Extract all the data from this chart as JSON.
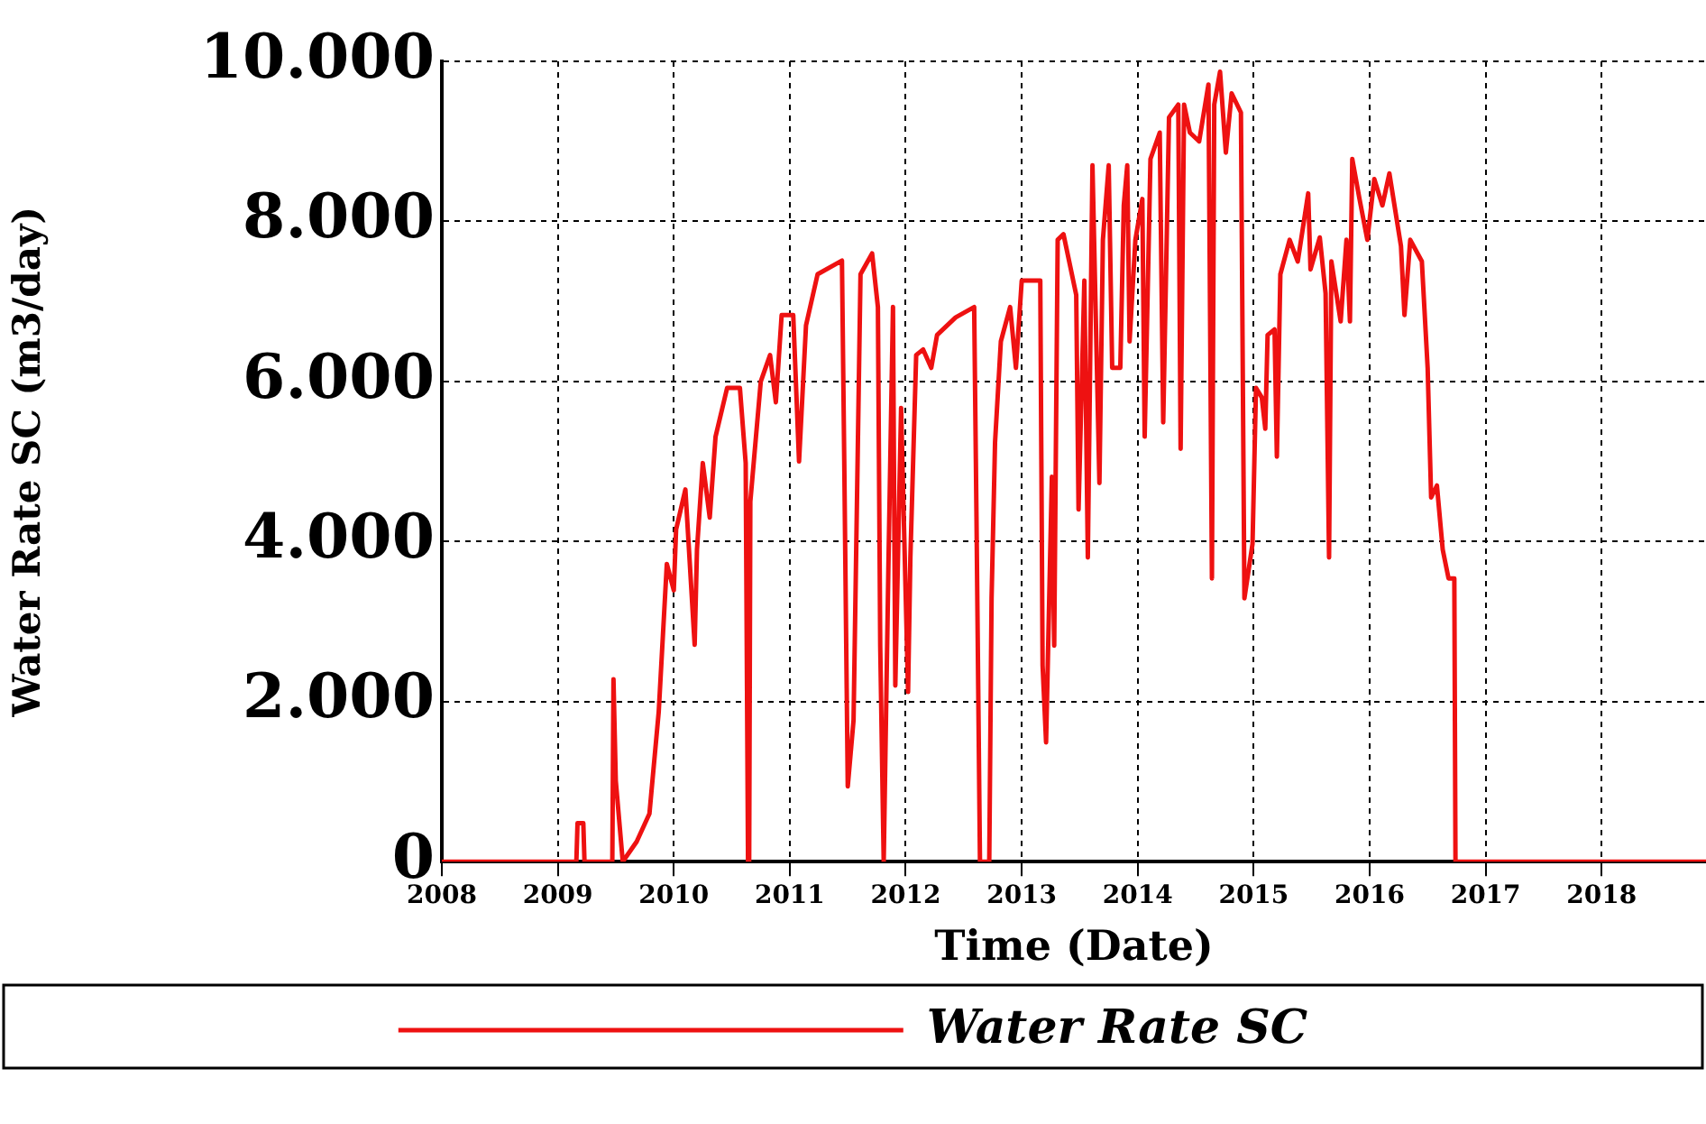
{
  "chart_data": {
    "type": "line",
    "xlabel": "Time (Date)",
    "ylabel": "Water Rate SC (m3/day)",
    "xlim": [
      2008,
      2018.9
    ],
    "xticks": [
      2008,
      2009,
      2010,
      2011,
      2012,
      2013,
      2014,
      2015,
      2016,
      2017,
      2018
    ],
    "ylim": [
      0,
      10000
    ],
    "yticks": [
      {
        "value": 0,
        "label": "0"
      },
      {
        "value": 2000,
        "label": "2.000"
      },
      {
        "value": 4000,
        "label": "4.000"
      },
      {
        "value": 6000,
        "label": "6.000"
      },
      {
        "value": 8000,
        "label": "8.000"
      },
      {
        "value": 10000,
        "label": "10.000"
      }
    ],
    "grid": true,
    "legend": "bottom",
    "marker": "none",
    "line_style": "solid",
    "series": [
      {
        "name": "Water Rate SC",
        "color": "#ee1111",
        "x": [
          2008,
          2009.16,
          2009.17,
          2009.22,
          2009.23,
          2009.47,
          2009.48,
          2009.5,
          2009.56,
          2009.68,
          2009.79,
          2009.87,
          2009.94,
          2010.0,
          2010.02,
          2010.1,
          2010.18,
          2010.2,
          2010.25,
          2010.31,
          2010.36,
          2010.46,
          2010.57,
          2010.62,
          2010.64,
          2010.65,
          2010.66,
          2010.75,
          2010.83,
          2010.88,
          2010.93,
          2011.03,
          2011.08,
          2011.14,
          2011.24,
          2011.45,
          2011.47,
          2011.5,
          2011.55,
          2011.61,
          2011.71,
          2011.76,
          2011.78,
          2011.81,
          2011.82,
          2011.85,
          2011.89,
          2011.91,
          2011.96,
          2012.02,
          2012.04,
          2012.09,
          2012.15,
          2012.22,
          2012.27,
          2012.43,
          2012.59,
          2012.61,
          2012.64,
          2012.72,
          2012.74,
          2012.77,
          2012.82,
          2012.9,
          2012.95,
          2013.0,
          2013.16,
          2013.18,
          2013.21,
          2013.26,
          2013.28,
          2013.31,
          2013.36,
          2013.47,
          2013.49,
          2013.54,
          2013.57,
          2013.61,
          2013.67,
          2013.7,
          2013.75,
          2013.78,
          2013.85,
          2013.88,
          2013.91,
          2013.93,
          2013.98,
          2014.04,
          2014.06,
          2014.11,
          2014.19,
          2014.22,
          2014.27,
          2014.35,
          2014.37,
          2014.4,
          2014.45,
          2014.53,
          2014.61,
          2014.64,
          2014.66,
          2014.71,
          2014.76,
          2014.81,
          2014.89,
          2014.92,
          2014.99,
          2015.02,
          2015.07,
          2015.1,
          2015.12,
          2015.18,
          2015.2,
          2015.23,
          2015.31,
          2015.38,
          2015.47,
          2015.49,
          2015.57,
          2015.62,
          2015.65,
          2015.67,
          2015.75,
          2015.8,
          2015.83,
          2015.85,
          2015.91,
          2015.98,
          2016.04,
          2016.11,
          2016.17,
          2016.27,
          2016.3,
          2016.35,
          2016.45,
          2016.5,
          2016.53,
          2016.58,
          2016.63,
          2016.68,
          2016.73,
          2016.74,
          2018.9
        ],
        "values": [
          0,
          0,
          480,
          480,
          0,
          0,
          2280,
          1010,
          0,
          250,
          600,
          1870,
          3720,
          3390,
          4150,
          4650,
          2710,
          3900,
          4980,
          4300,
          5310,
          5920,
          5920,
          4980,
          0,
          0,
          4500,
          6000,
          6330,
          5740,
          6830,
          6830,
          5000,
          6700,
          7340,
          7510,
          4980,
          940,
          1770,
          7340,
          7600,
          6930,
          2700,
          0,
          0,
          3640,
          6930,
          2200,
          5670,
          2120,
          3800,
          6330,
          6400,
          6170,
          6580,
          6800,
          6930,
          4300,
          0,
          0,
          3290,
          5240,
          6500,
          6930,
          6170,
          7260,
          7260,
          2450,
          1490,
          4810,
          2700,
          7770,
          7840,
          7080,
          4400,
          7260,
          3800,
          8700,
          4730,
          7770,
          8700,
          6170,
          6170,
          8200,
          8700,
          6500,
          7770,
          8280,
          5310,
          8780,
          9110,
          5490,
          9300,
          9460,
          5160,
          9460,
          9110,
          9000,
          9710,
          3540,
          9460,
          9870,
          8860,
          9600,
          9360,
          3290,
          3970,
          5920,
          5800,
          5410,
          6580,
          6650,
          5060,
          7340,
          7770,
          7500,
          8350,
          7400,
          7800,
          7100,
          3800,
          7500,
          6750,
          7770,
          6750,
          8780,
          8300,
          7770,
          8530,
          8200,
          8600,
          7690,
          6830,
          7770,
          7500,
          6170,
          4550,
          4700,
          3900,
          3540,
          3540,
          0,
          0
        ]
      }
    ]
  }
}
